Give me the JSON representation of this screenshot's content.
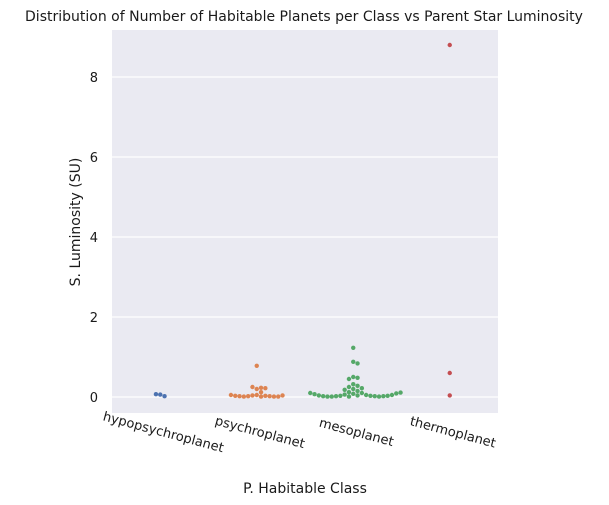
{
  "chart_data": {
    "type": "scatter",
    "subtype": "swarm",
    "title": "Distribution of Number of Habitable Planets per Class vs Parent Star Luminosity",
    "xlabel": "P. Habitable Class",
    "ylabel": "S. Luminosity (SU)",
    "categories": [
      "hypopsychroplanet",
      "psychroplanet",
      "mesoplanet",
      "thermoplanet"
    ],
    "yticks": [
      0,
      2,
      4,
      6,
      8
    ],
    "ylim": [
      -0.4,
      9.2
    ],
    "grid": true,
    "background": "#eaeaf2",
    "colors": [
      "#4c72b0",
      "#dd8452",
      "#55a868",
      "#c44e52"
    ],
    "series": [
      {
        "values": [
          0.06,
          0.02,
          0.07
        ]
      },
      {
        "values": [
          0.78,
          0.2,
          0.23,
          0.25,
          0.22,
          0.12,
          0.05,
          0.04,
          0.03,
          0.02,
          0.02,
          0.01,
          0.01,
          0.01,
          0.01,
          0.02,
          0.03,
          0.04,
          0.05
        ]
      },
      {
        "values": [
          1.23,
          0.88,
          0.84,
          0.5,
          0.48,
          0.45,
          0.32,
          0.28,
          0.25,
          0.22,
          0.2,
          0.18,
          0.15,
          0.12,
          0.1,
          0.08,
          0.06,
          0.05,
          0.04,
          0.03,
          0.03,
          0.02,
          0.02,
          0.01,
          0.01,
          0.01,
          0.01,
          0.02,
          0.02,
          0.03,
          0.04,
          0.05,
          0.07,
          0.09,
          0.1,
          0.11
        ]
      },
      {
        "values": [
          8.8,
          0.6,
          0.04
        ]
      }
    ]
  }
}
